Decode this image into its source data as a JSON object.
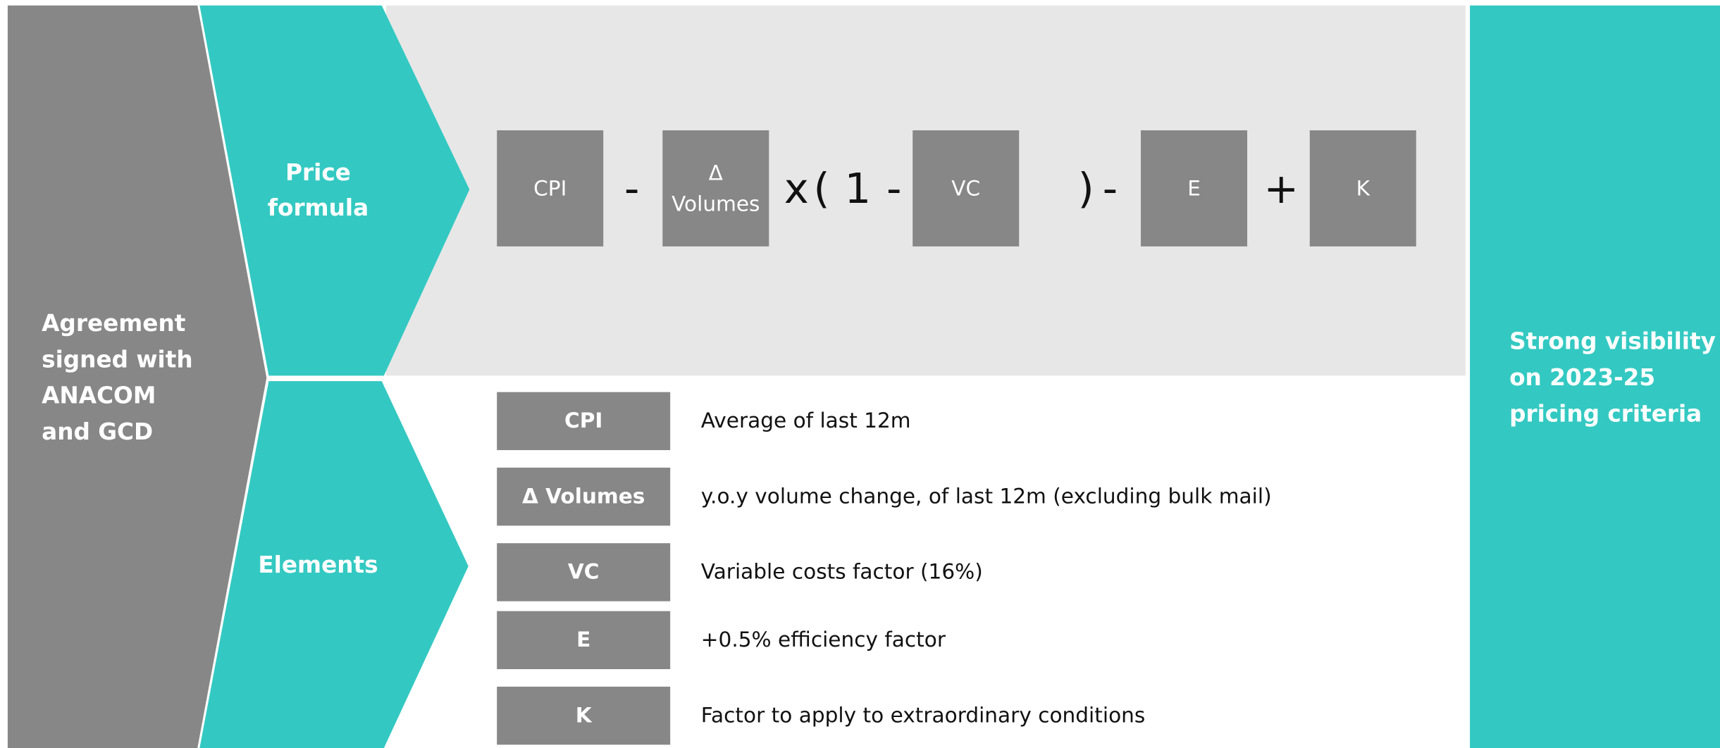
{
  "left_panel": {
    "lines": [
      "Agreement",
      "signed with",
      "ANACOM",
      "and GCD"
    ]
  },
  "price_formula": {
    "label": [
      "Price",
      "formula"
    ],
    "boxes": [
      [
        "CPI"
      ],
      [
        "Δ",
        "Volumes"
      ],
      [
        "VC"
      ],
      [
        "E"
      ],
      [
        "K"
      ]
    ],
    "operators": [
      "-",
      "x",
      "(",
      "1",
      "-",
      ")",
      "-",
      "+"
    ]
  },
  "elements": {
    "label": [
      "Elements"
    ],
    "rows": [
      [
        "CPI",
        "Average of last 12m"
      ],
      [
        "Δ Volumes",
        "y.o.y volume change, of last 12m (excluding bulk mail)"
      ],
      [
        "VC",
        "Variable costs factor (16%)"
      ],
      [
        "E",
        "+0.5% efficiency factor"
      ],
      [
        "K",
        "Factor to apply to extraordinary conditions"
      ]
    ]
  },
  "right_panel": {
    "lines": [
      "Strong visibility",
      "on 2023-25",
      "pricing criteria"
    ]
  }
}
